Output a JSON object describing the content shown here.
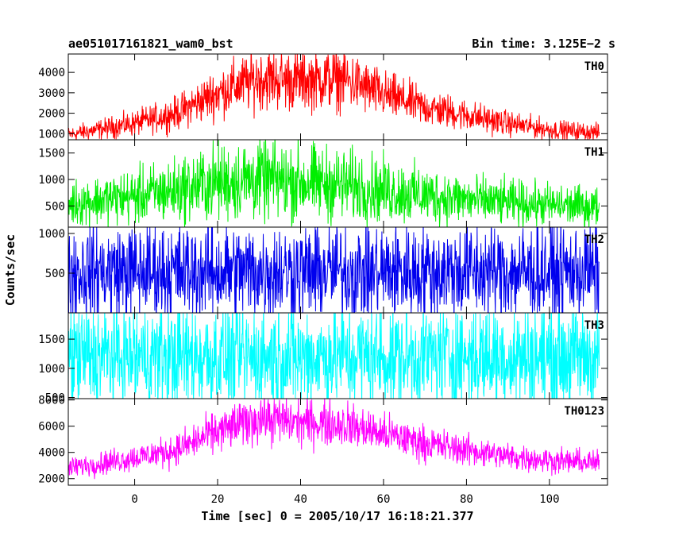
{
  "header": {
    "title": "ae051017161821_wam0_bst",
    "bin_time": "Bin time: 3.125E−2 s"
  },
  "chart_data": {
    "type": "line",
    "xlabel": "Time [sec] 0 = 2005/10/17 16:18:21.377",
    "ylabel": "Counts/sec",
    "xlim": [
      -16,
      114
    ],
    "x_ticks": [
      0,
      20,
      40,
      60,
      80,
      100
    ],
    "x_tick_labels": [
      "0",
      "20",
      "40",
      "60",
      "80",
      "100"
    ],
    "x_range": [
      -16,
      112
    ],
    "panels": [
      {
        "name": "TH0",
        "color": "#ff0000",
        "ylim": [
          700,
          4900
        ],
        "y_ticks": [
          1000,
          2000,
          3000,
          4000
        ],
        "y_tick_labels": [
          "1000",
          "2000",
          "3000",
          "4000"
        ],
        "profile": [
          [
            -16,
            950
          ],
          [
            0,
            1500
          ],
          [
            10,
            2000
          ],
          [
            20,
            3000
          ],
          [
            30,
            3700
          ],
          [
            40,
            3600
          ],
          [
            50,
            3700
          ],
          [
            60,
            2900
          ],
          [
            70,
            2300
          ],
          [
            80,
            1900
          ],
          [
            90,
            1500
          ],
          [
            100,
            1200
          ],
          [
            112,
            1050
          ]
        ],
        "noise": 0.2
      },
      {
        "name": "TH1",
        "color": "#00ee00",
        "ylim": [
          100,
          1750
        ],
        "y_ticks": [
          500,
          1000,
          1500
        ],
        "y_tick_labels": [
          "500",
          "1000",
          "1500"
        ],
        "profile": [
          [
            -16,
            550
          ],
          [
            0,
            680
          ],
          [
            10,
            800
          ],
          [
            20,
            950
          ],
          [
            30,
            1000
          ],
          [
            40,
            950
          ],
          [
            50,
            900
          ],
          [
            60,
            800
          ],
          [
            70,
            700
          ],
          [
            80,
            620
          ],
          [
            90,
            560
          ],
          [
            100,
            520
          ],
          [
            112,
            480
          ]
        ],
        "noise": 0.38
      },
      {
        "name": "TH2",
        "color": "#0000ee",
        "ylim": [
          0,
          1080
        ],
        "y_ticks": [
          500,
          1000
        ],
        "y_tick_labels": [
          "500",
          "1000"
        ],
        "profile": [
          [
            -16,
            520
          ],
          [
            112,
            520
          ]
        ],
        "noise": 0.58
      },
      {
        "name": "TH3",
        "color": "#00ffff",
        "ylim": [
          480,
          1950
        ],
        "y_ticks": [
          500,
          1000,
          1500
        ],
        "y_tick_labels": [
          "500",
          "1000",
          "1500"
        ],
        "profile": [
          [
            -16,
            1200
          ],
          [
            112,
            1200
          ]
        ],
        "noise": 0.38
      },
      {
        "name": "TH0123",
        "color": "#ff00ff",
        "ylim": [
          1500,
          8100
        ],
        "y_ticks": [
          2000,
          4000,
          6000,
          8000
        ],
        "y_tick_labels": [
          "2000",
          "4000",
          "6000",
          "8000"
        ],
        "profile": [
          [
            -16,
            2800
          ],
          [
            0,
            3600
          ],
          [
            10,
            4200
          ],
          [
            20,
            5600
          ],
          [
            30,
            6600
          ],
          [
            40,
            6300
          ],
          [
            50,
            6200
          ],
          [
            60,
            5400
          ],
          [
            70,
            4700
          ],
          [
            80,
            4200
          ],
          [
            90,
            3700
          ],
          [
            100,
            3400
          ],
          [
            112,
            3200
          ]
        ],
        "noise": 0.14
      }
    ]
  }
}
